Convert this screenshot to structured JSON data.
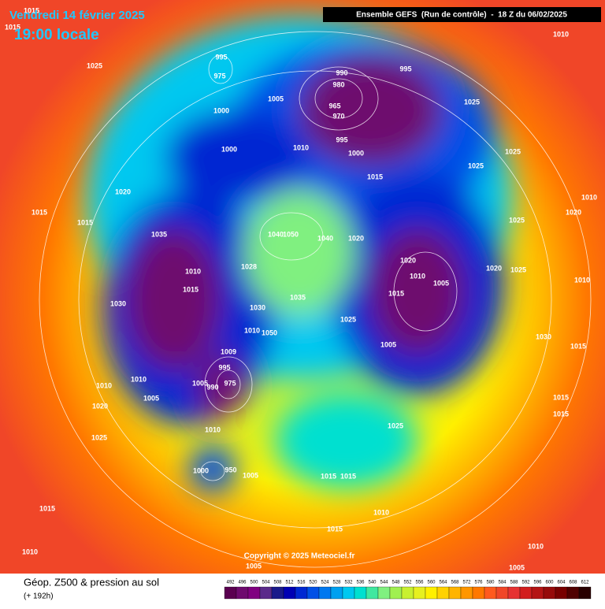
{
  "header": {
    "date": "Vendredi 14 février 2025",
    "local_time": "19:00 locale",
    "model": "Ensemble GEFS  (Run de contrôle)  -  18 Z du 06/02/2025"
  },
  "copyright": "Copyright © 2025 Meteociel.fr",
  "footer": {
    "title": "Géop. Z500 & pression au sol",
    "lead_time": "(+ 192h)"
  },
  "isobar_labels": [
    1015,
    1015,
    1025,
    995,
    975,
    1000,
    1005,
    1000,
    1010,
    990,
    980,
    965,
    970,
    995,
    995,
    1000,
    1015,
    1025,
    1025,
    1025,
    1010,
    1010,
    1020,
    1025,
    1020,
    1015,
    1015,
    1035,
    1040,
    1050,
    1040,
    1020,
    1020,
    1010,
    1005,
    1015,
    1020,
    1025,
    1010,
    1010,
    1028,
    1015,
    1030,
    1035,
    1030,
    1025,
    1010,
    1050,
    1005,
    1030,
    1015,
    1009,
    995,
    1005,
    990,
    975,
    1010,
    1010,
    1005,
    1015,
    1015,
    1020,
    1025,
    1010,
    1025,
    1000,
    950,
    1005,
    1015,
    1015,
    1015,
    1010,
    1015,
    1010,
    1010,
    1005,
    1005
  ],
  "colorbar": {
    "labels": [
      492,
      496,
      500,
      504,
      508,
      512,
      516,
      520,
      524,
      528,
      532,
      536,
      540,
      544,
      548,
      552,
      556,
      560,
      564,
      568,
      572,
      576,
      580,
      584,
      588,
      592,
      596,
      600,
      604,
      608,
      612
    ],
    "colors": [
      "#5a0050",
      "#6e0a6e",
      "#800080",
      "#5a2a8a",
      "#1a1a8a",
      "#0000b4",
      "#0028d2",
      "#0050e6",
      "#0078f0",
      "#00a0f0",
      "#00c8f0",
      "#00e0d0",
      "#40e8a0",
      "#80f080",
      "#a0f050",
      "#c8f030",
      "#e6f020",
      "#fff000",
      "#ffd200",
      "#ffb400",
      "#ff9600",
      "#ff7800",
      "#ff5a1e",
      "#f04628",
      "#e63232",
      "#d21e1e",
      "#b41414",
      "#960a0a",
      "#780000",
      "#500000",
      "#280000"
    ]
  }
}
